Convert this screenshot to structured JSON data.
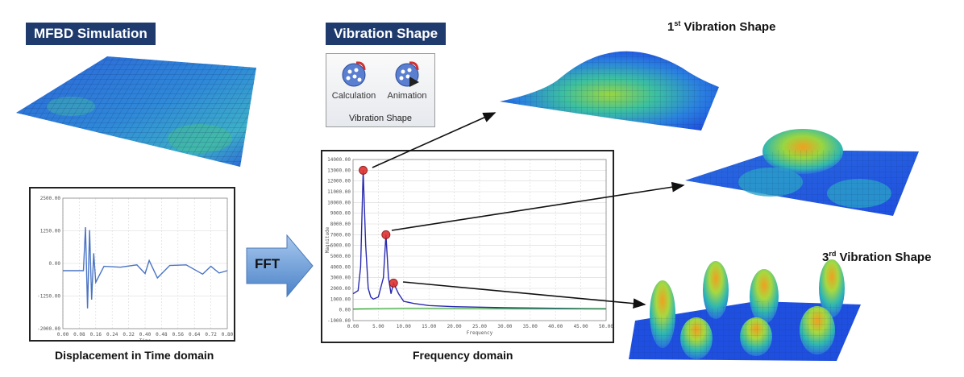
{
  "left": {
    "title": "MFBD Simulation",
    "time_caption": "Displacement in Time domain"
  },
  "fft_label": "FFT",
  "middle": {
    "title": "Vibration Shape",
    "ribbon": {
      "buttons": [
        {
          "label": "Calculation",
          "icon": "calculation-icon"
        },
        {
          "label": "Animation",
          "icon": "animation-icon"
        }
      ],
      "group_label": "Vibration Shape"
    },
    "freq_caption": "Frequency domain"
  },
  "shapes": {
    "first": {
      "ordinal": "1",
      "suffix": "st",
      "text": " Vibration Shape"
    },
    "third": {
      "ordinal": "3",
      "suffix": "rd",
      "text": "  Vibration Shape"
    }
  },
  "colors": {
    "badge": "#1f3b6e",
    "trace": "#4a74c4",
    "fft_line": "#2a2ab0",
    "marker": "#e03030",
    "mesh_low": "#1f4fe0",
    "mesh_mid": "#23c0c0",
    "mesh_high": "#f0a020"
  },
  "chart_data": [
    {
      "type": "line",
      "title": "",
      "xlabel": "Time",
      "ylabel": "",
      "xlim": [
        0,
        0.8
      ],
      "ylim": [
        -2000,
        2500
      ],
      "x_ticks": [
        "0.00",
        "0.08",
        "0.16",
        "0.24",
        "0.32",
        "0.40",
        "0.48",
        "0.56",
        "0.64",
        "0.72",
        "0.80"
      ],
      "y_ticks": [
        "2500.00",
        "1250.00",
        "0.00",
        "-1250.00",
        "-2000.00"
      ],
      "series": [
        {
          "x": [
            0.0,
            0.1,
            0.11,
            0.12,
            0.13,
            0.14,
            0.15,
            0.16,
            0.2,
            0.28,
            0.36,
            0.4,
            0.42,
            0.46,
            0.52,
            0.6,
            0.68,
            0.72,
            0.76,
            0.8
          ],
          "y": [
            0,
            0,
            1500,
            -1300,
            1400,
            -1000,
            600,
            -400,
            150,
            120,
            200,
            -100,
            350,
            -250,
            180,
            200,
            -120,
            150,
            -80,
            0
          ]
        }
      ]
    },
    {
      "type": "line",
      "title": "",
      "xlabel": "Frequency",
      "ylabel": "Magnitude",
      "xlim": [
        0,
        50
      ],
      "ylim": [
        -1000,
        14000
      ],
      "x_ticks": [
        "0.00",
        "5.00",
        "10.00",
        "15.00",
        "20.00",
        "25.00",
        "30.00",
        "35.00",
        "40.00",
        "45.00",
        "50.00"
      ],
      "y_ticks": [
        "14000.00",
        "13000.00",
        "12000.00",
        "11000.00",
        "10000.00",
        "9000.00",
        "8000.00",
        "7000.00",
        "6000.00",
        "5000.00",
        "4000.00",
        "3000.00",
        "2000.00",
        "1000.00",
        "0.00",
        "-1000.00"
      ],
      "series": [
        {
          "x": [
            0,
            1,
            1.5,
            2,
            2.5,
            3,
            3.5,
            4,
            5,
            6,
            6.5,
            7,
            7.5,
            8,
            9,
            10,
            12,
            15,
            20,
            25,
            30,
            35,
            40,
            45,
            50
          ],
          "y": [
            1500,
            1800,
            4000,
            13000,
            6000,
            2000,
            1200,
            1000,
            1200,
            3000,
            7000,
            3000,
            1500,
            2500,
            1500,
            800,
            600,
            400,
            300,
            250,
            200,
            180,
            150,
            120,
            100
          ]
        },
        {
          "x": [
            0,
            5,
            10,
            20,
            30,
            40,
            50
          ],
          "y": [
            80,
            120,
            150,
            140,
            120,
            100,
            90
          ]
        }
      ],
      "markers": [
        {
          "x": 2,
          "y": 13000
        },
        {
          "x": 6.5,
          "y": 7000
        },
        {
          "x": 8,
          "y": 2500
        }
      ]
    }
  ]
}
